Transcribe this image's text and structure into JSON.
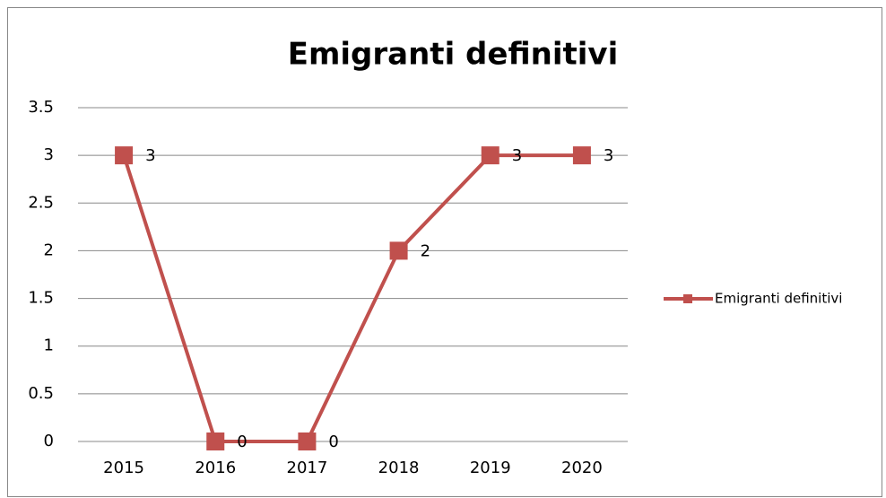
{
  "chart_data": {
    "type": "line",
    "title": "Emigranti definitivi",
    "categories": [
      "2015",
      "2016",
      "2017",
      "2018",
      "2019",
      "2020"
    ],
    "series": [
      {
        "name": "Emigranti definitivi",
        "color": "#c0504d",
        "values": [
          3,
          0,
          0,
          2,
          3,
          3
        ]
      }
    ],
    "ylim": [
      0,
      3.5
    ],
    "yticks": [
      0,
      0.5,
      1,
      1.5,
      2,
      2.5,
      3,
      3.5
    ],
    "grid": true,
    "legend": "right",
    "data_labels": true
  }
}
